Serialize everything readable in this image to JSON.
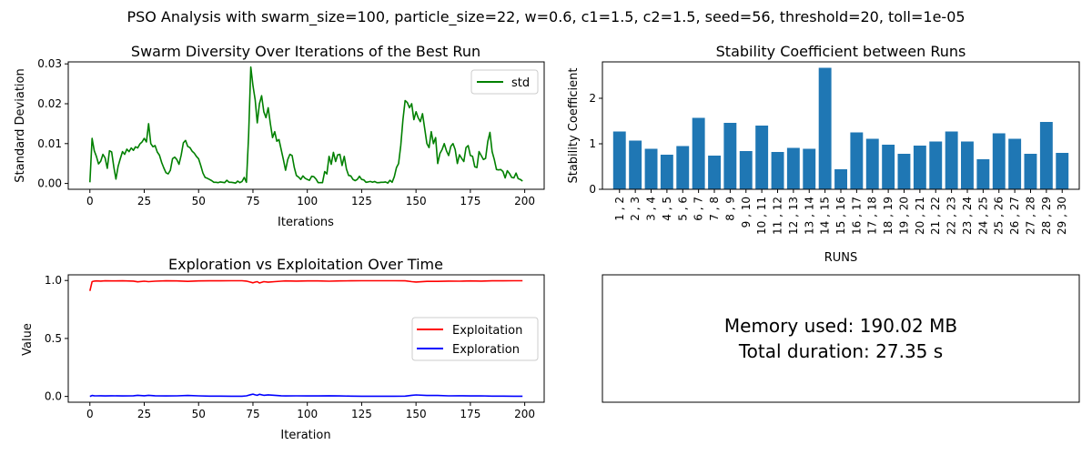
{
  "suptitle": "PSO Analysis with swarm_size=100, particle_size=22, w=0.6, c1=1.5, c2=1.5, seed=56, threshold=20, toll=1e-05",
  "colors": {
    "std": "#008000",
    "exploitation": "#ff0000",
    "exploration": "#0000ff",
    "bar": "#1f77b4"
  },
  "chart_data": [
    {
      "type": "line",
      "title": "Swarm Diversity Over Iterations of the Best Run",
      "xlabel": "Iterations",
      "ylabel": "Standard Deviation",
      "xlim": [
        -9.95,
        208.95
      ],
      "ylim": [
        -0.00146,
        0.0305
      ],
      "xticks": [
        0,
        25,
        50,
        75,
        100,
        125,
        150,
        175,
        200
      ],
      "yticks": [
        0.0,
        0.01,
        0.02,
        0.03
      ],
      "ytick_labels": [
        "0.00",
        "0.01",
        "0.02",
        "0.03"
      ],
      "legend": "top-right",
      "grid": false,
      "series": [
        {
          "name": "std",
          "x": [
            0,
            1,
            2,
            3,
            4,
            5,
            6,
            7,
            8,
            9,
            10,
            11,
            12,
            13,
            14,
            15,
            16,
            17,
            18,
            19,
            20,
            21,
            22,
            23,
            24,
            25,
            26,
            27,
            28,
            29,
            30,
            31,
            32,
            33,
            34,
            35,
            36,
            37,
            38,
            39,
            40,
            41,
            42,
            43,
            44,
            45,
            46,
            47,
            48,
            49,
            50,
            51,
            52,
            53,
            54,
            55,
            56,
            57,
            58,
            59,
            60,
            61,
            62,
            63,
            64,
            65,
            66,
            67,
            68,
            69,
            70,
            71,
            72,
            73,
            74,
            75,
            76,
            77,
            78,
            79,
            80,
            81,
            82,
            83,
            84,
            85,
            86,
            87,
            88,
            89,
            90,
            91,
            92,
            93,
            94,
            95,
            96,
            97,
            98,
            99,
            100,
            101,
            102,
            103,
            104,
            105,
            106,
            107,
            108,
            109,
            110,
            111,
            112,
            113,
            114,
            115,
            116,
            117,
            118,
            119,
            120,
            121,
            122,
            123,
            124,
            125,
            126,
            127,
            128,
            129,
            130,
            131,
            132,
            133,
            134,
            135,
            136,
            137,
            138,
            139,
            140,
            141,
            142,
            143,
            144,
            145,
            146,
            147,
            148,
            149,
            150,
            151,
            152,
            153,
            154,
            155,
            156,
            157,
            158,
            159,
            160,
            161,
            162,
            163,
            164,
            165,
            166,
            167,
            168,
            169,
            170,
            171,
            172,
            173,
            174,
            175,
            176,
            177,
            178,
            179,
            180,
            181,
            182,
            183,
            184,
            185,
            186,
            187,
            188,
            189,
            190,
            191,
            192,
            193,
            194,
            195,
            196,
            197,
            198,
            199
          ],
          "values": [
            0.0003,
            0.0113,
            0.0082,
            0.0068,
            0.0049,
            0.0056,
            0.0073,
            0.0064,
            0.0038,
            0.0082,
            0.0079,
            0.0041,
            0.0011,
            0.0043,
            0.0062,
            0.008,
            0.0073,
            0.0086,
            0.008,
            0.0089,
            0.0083,
            0.0092,
            0.0089,
            0.0099,
            0.0104,
            0.0113,
            0.0104,
            0.015,
            0.01,
            0.0092,
            0.0095,
            0.0079,
            0.0071,
            0.0053,
            0.0039,
            0.0027,
            0.0024,
            0.0033,
            0.0062,
            0.0066,
            0.006,
            0.0048,
            0.0071,
            0.0102,
            0.0108,
            0.0093,
            0.009,
            0.0081,
            0.0076,
            0.0068,
            0.0062,
            0.0045,
            0.0026,
            0.0015,
            0.0013,
            0.001,
            0.0007,
            0.0003,
            0.0003,
            0.0002,
            0.0004,
            0.0003,
            0.0002,
            0.0008,
            0.0003,
            0.0003,
            0.0002,
            0.0001,
            0.0006,
            0.0002,
            0.0005,
            0.0015,
            0.0003,
            0.012,
            0.0292,
            0.0245,
            0.021,
            0.0152,
            0.02,
            0.022,
            0.018,
            0.0165,
            0.019,
            0.015,
            0.0115,
            0.013,
            0.0106,
            0.011,
            0.0085,
            0.006,
            0.0033,
            0.006,
            0.0073,
            0.007,
            0.004,
            0.002,
            0.0016,
            0.001,
            0.0019,
            0.0013,
            0.001,
            0.0008,
            0.0018,
            0.0017,
            0.0011,
            0.0002,
            0.0002,
            0.0002,
            0.003,
            0.0024,
            0.0068,
            0.0048,
            0.0078,
            0.0055,
            0.0072,
            0.0073,
            0.0045,
            0.0068,
            0.0036,
            0.002,
            0.0019,
            0.001,
            0.0007,
            0.001,
            0.0018,
            0.001,
            0.0009,
            0.0003,
            0.0004,
            0.0005,
            0.0003,
            0.0005,
            0.0002,
            0.0002,
            0.0003,
            0.0003,
            0.0004,
            0.0001,
            0.0008,
            0.0003,
            0.0017,
            0.004,
            0.005,
            0.0095,
            0.016,
            0.0208,
            0.0203,
            0.019,
            0.02,
            0.016,
            0.018,
            0.0165,
            0.0155,
            0.0175,
            0.0138,
            0.01,
            0.009,
            0.013,
            0.01,
            0.0115,
            0.005,
            0.0075,
            0.0085,
            0.01,
            0.0082,
            0.007,
            0.0093,
            0.01,
            0.0085,
            0.005,
            0.0072,
            0.0063,
            0.0055,
            0.009,
            0.0095,
            0.007,
            0.0068,
            0.0042,
            0.004,
            0.008,
            0.007,
            0.006,
            0.0063,
            0.0105,
            0.0128,
            0.008,
            0.006,
            0.0035,
            0.0034,
            0.0035,
            0.003,
            0.0014,
            0.0032,
            0.0025,
            0.0015,
            0.0014,
            0.0026,
            0.0012,
            0.001,
            0.0006
          ]
        }
      ]
    },
    {
      "type": "bar",
      "title": "Stability Coefficient between Runs",
      "xlabel": "RUNS",
      "ylabel": "Stability Coefficient",
      "ylim": [
        0,
        2.8
      ],
      "yticks": [
        0,
        1,
        2
      ],
      "categories": [
        "1 , 2",
        "2 , 3",
        "3 , 4",
        "4 , 5",
        "5 , 6",
        "6 , 7",
        "7 , 8",
        "8 , 9",
        "9 , 10",
        "10 , 11",
        "11 , 12",
        "12 , 13",
        "13 , 14",
        "14 , 15",
        "15 , 16",
        "16 , 17",
        "17 , 18",
        "18 , 19",
        "19 , 20",
        "20 , 21",
        "21 , 22",
        "22 , 23",
        "23 , 24",
        "24 , 25",
        "25 , 26",
        "26 , 27",
        "27 , 28",
        "28 , 29",
        "29 , 30"
      ],
      "values": [
        1.27,
        1.07,
        0.89,
        0.76,
        0.95,
        1.57,
        0.74,
        1.46,
        0.84,
        1.4,
        0.82,
        0.91,
        0.89,
        2.67,
        0.44,
        1.25,
        1.11,
        0.98,
        0.78,
        0.96,
        1.05,
        1.27,
        1.05,
        0.66,
        1.23,
        1.11,
        0.78,
        1.48,
        0.8
      ],
      "grid": false
    },
    {
      "type": "line",
      "title": "Exploration vs Exploitation Over Time",
      "xlabel": "Iteration",
      "ylabel": "Value",
      "xlim": [
        -9.95,
        208.95
      ],
      "ylim": [
        -0.0499,
        1.0488
      ],
      "xticks": [
        0,
        25,
        50,
        75,
        100,
        125,
        150,
        175,
        200
      ],
      "yticks": [
        0.0,
        0.5,
        1.0
      ],
      "ytick_labels": [
        "0.0",
        "0.5",
        "1.0"
      ],
      "legend": "center-right",
      "grid": false,
      "series": [
        {
          "name": "Exploitation",
          "x": [
            0,
            1,
            2,
            3,
            5,
            7,
            10,
            15,
            20,
            22,
            25,
            27,
            30,
            35,
            40,
            45,
            50,
            55,
            60,
            65,
            70,
            72,
            74,
            75,
            76,
            77,
            78,
            80,
            82,
            85,
            88,
            90,
            95,
            100,
            105,
            110,
            115,
            120,
            125,
            130,
            135,
            140,
            145,
            148,
            150,
            155,
            160,
            165,
            170,
            175,
            180,
            185,
            190,
            195,
            199
          ],
          "values": [
            0.91,
            0.99,
            0.995,
            0.996,
            0.995,
            0.997,
            0.996,
            0.997,
            0.995,
            0.988,
            0.994,
            0.99,
            0.994,
            0.997,
            0.996,
            0.992,
            0.996,
            0.997,
            0.997,
            0.998,
            0.998,
            0.995,
            0.985,
            0.98,
            0.986,
            0.99,
            0.978,
            0.99,
            0.985,
            0.99,
            0.994,
            0.996,
            0.995,
            0.996,
            0.996,
            0.994,
            0.996,
            0.997,
            0.998,
            0.998,
            0.998,
            0.998,
            0.997,
            0.99,
            0.987,
            0.992,
            0.992,
            0.995,
            0.994,
            0.996,
            0.995,
            0.997,
            0.997,
            0.998,
            0.998
          ]
        },
        {
          "name": "Exploration",
          "x": [
            0,
            1,
            2,
            3,
            5,
            7,
            10,
            15,
            20,
            22,
            25,
            27,
            30,
            35,
            40,
            45,
            50,
            55,
            60,
            65,
            70,
            72,
            74,
            75,
            76,
            77,
            78,
            80,
            82,
            85,
            88,
            90,
            95,
            100,
            105,
            110,
            115,
            120,
            125,
            130,
            135,
            140,
            145,
            148,
            150,
            155,
            160,
            165,
            170,
            175,
            180,
            185,
            190,
            195,
            199
          ],
          "values": [
            0.0,
            0.008,
            0.006,
            0.005,
            0.006,
            0.004,
            0.006,
            0.004,
            0.006,
            0.01,
            0.006,
            0.01,
            0.006,
            0.004,
            0.005,
            0.008,
            0.005,
            0.003,
            0.003,
            0.002,
            0.002,
            0.005,
            0.015,
            0.02,
            0.014,
            0.01,
            0.018,
            0.01,
            0.014,
            0.01,
            0.006,
            0.004,
            0.005,
            0.004,
            0.004,
            0.006,
            0.004,
            0.003,
            0.002,
            0.002,
            0.002,
            0.002,
            0.003,
            0.01,
            0.013,
            0.008,
            0.008,
            0.005,
            0.006,
            0.004,
            0.005,
            0.003,
            0.003,
            0.002,
            0.002
          ]
        }
      ]
    }
  ],
  "info_panel": {
    "line1": "Memory used: 190.02 MB",
    "line2": "Total duration: 27.35 s"
  }
}
